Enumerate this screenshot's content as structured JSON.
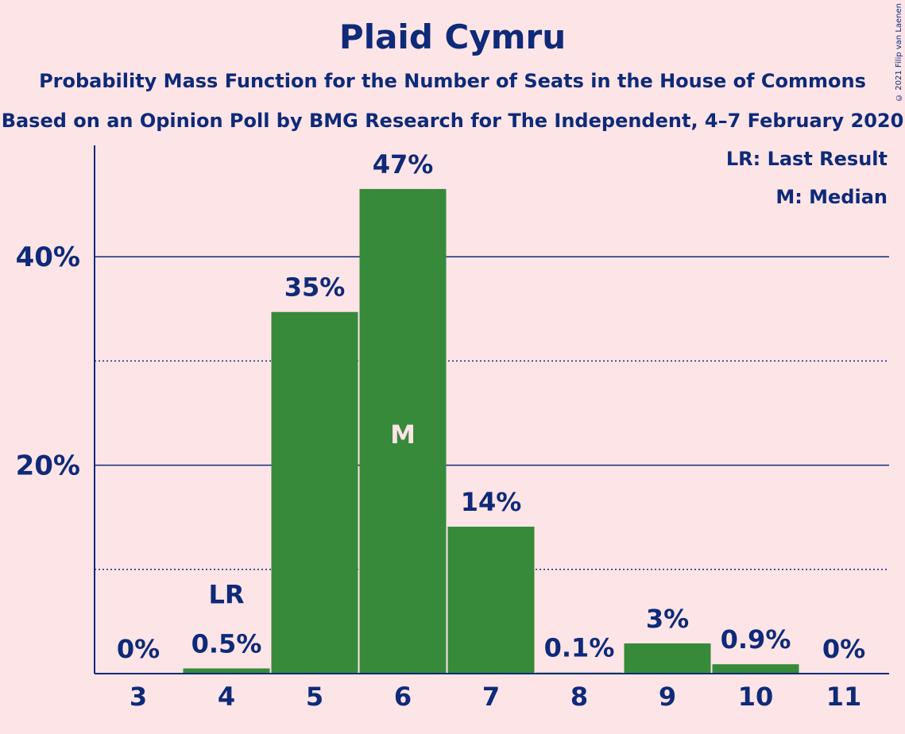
{
  "title": "Plaid Cymru",
  "subtitle_1": "Probability Mass Function for the Number of Seats in the House of Commons",
  "subtitle_2": "Based on an Opinion Poll by BMG Research for The Independent, 4–7 February 2020",
  "copyright": "© 2021 Filip van Laenen",
  "legend": {
    "last_result": "LR: Last Result",
    "median": "M: Median"
  },
  "colors": {
    "background": "#fde4e7",
    "bar": "#368a3a",
    "text": "#0e2a78",
    "median_marker": "#fde4e7"
  },
  "chart_data": {
    "type": "bar",
    "categories": [
      "3",
      "4",
      "5",
      "6",
      "7",
      "8",
      "9",
      "10",
      "11"
    ],
    "values": [
      0,
      0.5,
      34.7,
      46.5,
      14.1,
      0.1,
      2.9,
      0.9,
      0
    ],
    "data_labels": [
      "0%",
      "0.5%",
      "35%",
      "47%",
      "14%",
      "0.1%",
      "3%",
      "0.9%",
      "0%"
    ],
    "ylim": [
      0,
      50
    ],
    "y_ticks_major": [
      20,
      40
    ],
    "y_tick_labels": [
      "20%",
      "40%"
    ],
    "y_ticks_minor": [
      10,
      30
    ],
    "last_result_category": "4",
    "last_result_label": "LR",
    "median_category": "6",
    "median_label": "M",
    "grid": true
  }
}
